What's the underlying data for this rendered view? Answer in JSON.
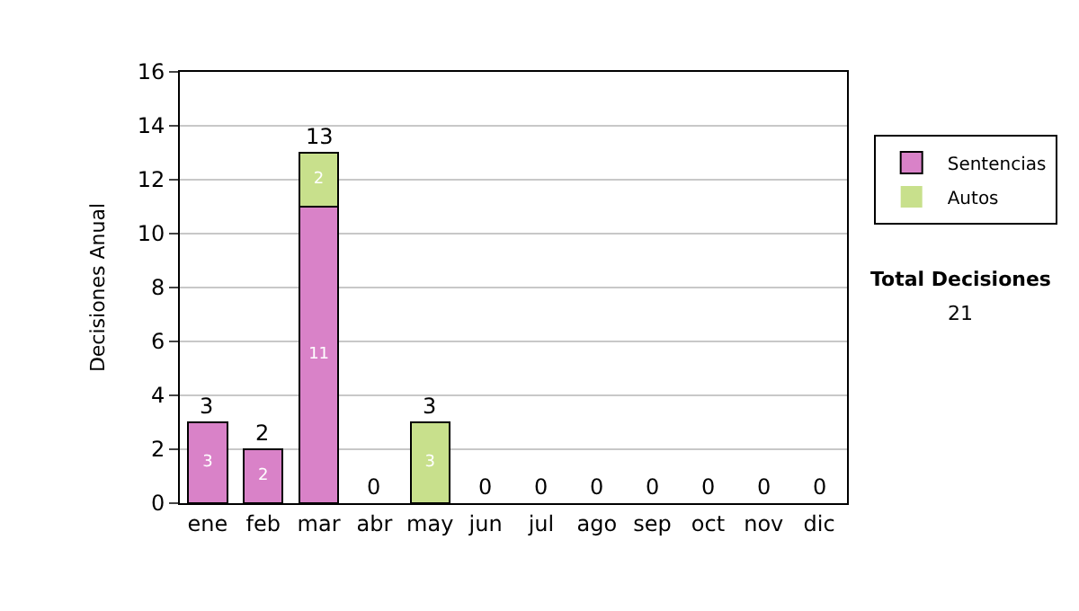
{
  "chart_data": {
    "type": "bar",
    "stacked": true,
    "ylabel": "Decisiones Anual",
    "categories": [
      "ene",
      "feb",
      "mar",
      "abr",
      "may",
      "jun",
      "jul",
      "ago",
      "sep",
      "oct",
      "nov",
      "dic"
    ],
    "series": [
      {
        "name": "Sentencias",
        "color": "#d982c8",
        "values": [
          3,
          2,
          11,
          0,
          0,
          0,
          0,
          0,
          0,
          0,
          0,
          0
        ],
        "value_labels": [
          "3",
          "2",
          "11",
          null,
          null,
          null,
          null,
          null,
          null,
          null,
          null,
          null
        ]
      },
      {
        "name": "Autos",
        "color": "#c8e08c",
        "values": [
          0,
          0,
          2,
          0,
          3,
          0,
          0,
          0,
          0,
          0,
          0,
          0
        ],
        "value_labels": [
          null,
          null,
          "2",
          null,
          "3",
          null,
          null,
          null,
          null,
          null,
          null,
          null
        ]
      }
    ],
    "totals": [
      "3",
      "2",
      "13",
      "0",
      "3",
      "0",
      "0",
      "0",
      "0",
      "0",
      "0",
      "0"
    ],
    "ylim": [
      0,
      16
    ],
    "yticks": [
      0,
      2,
      4,
      6,
      8,
      10,
      12,
      14,
      16
    ],
    "grid": "y",
    "legend": "right",
    "annotations": [
      "Total Decisiones",
      "21"
    ]
  }
}
